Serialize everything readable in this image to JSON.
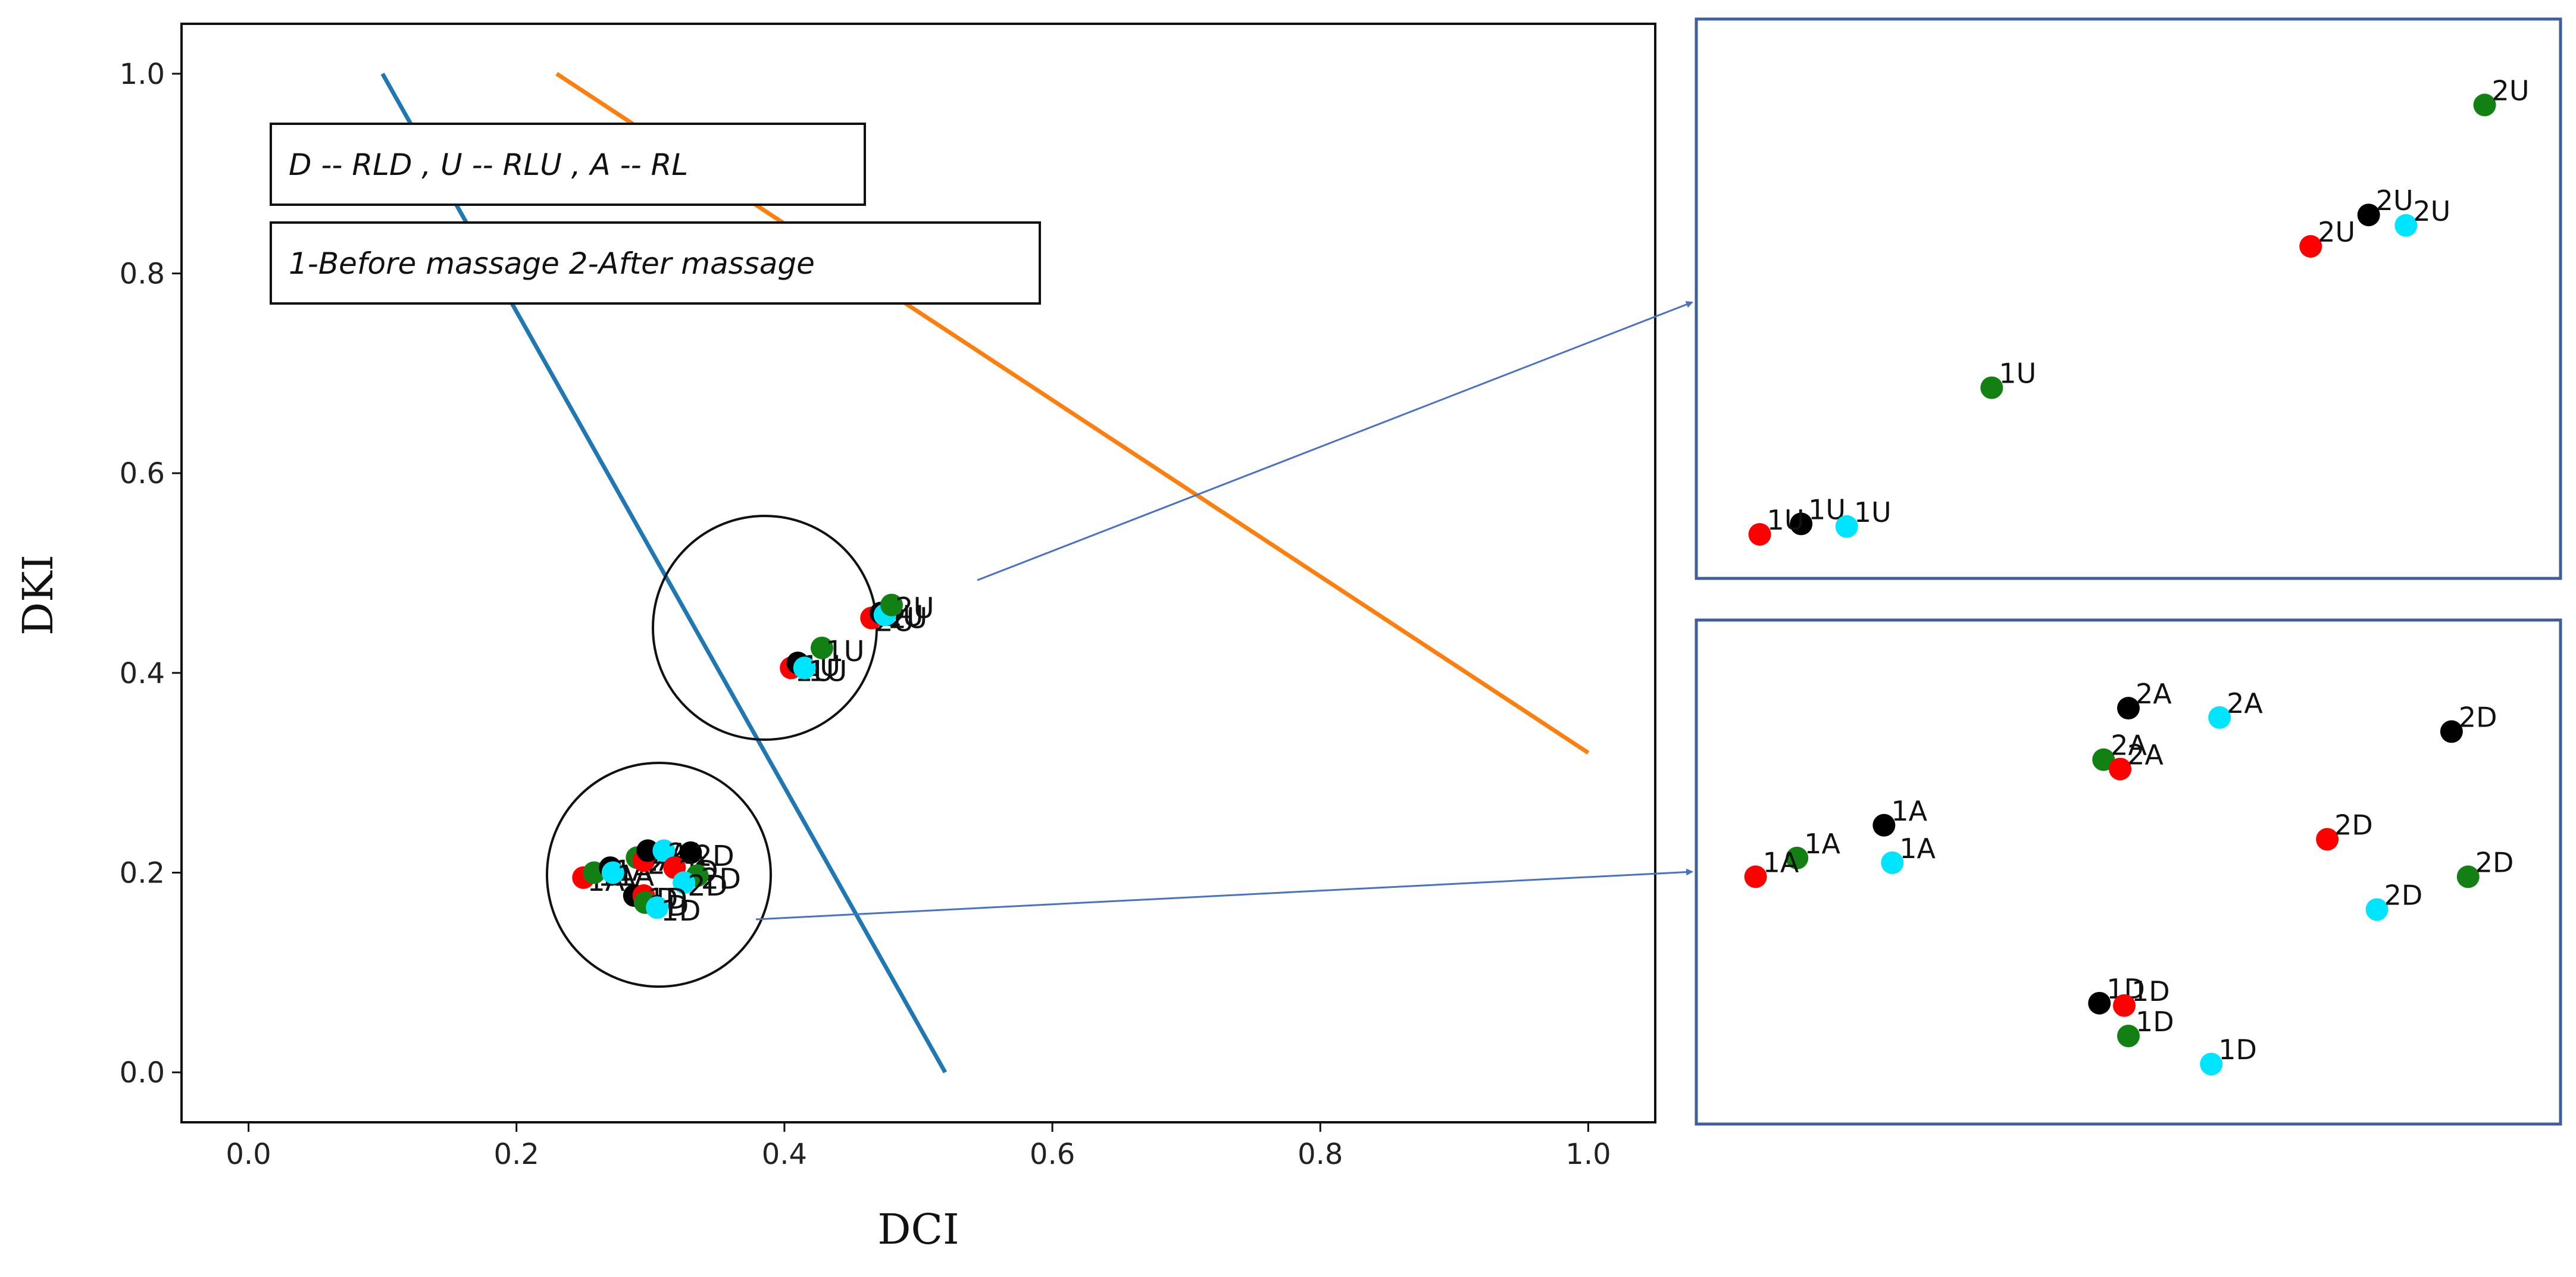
{
  "chart_data": {
    "type": "scatter",
    "xlabel": "DCI",
    "ylabel": "DKI",
    "xlim": [
      -0.05,
      1.05
    ],
    "ylim": [
      -0.05,
      1.05
    ],
    "xticks": [
      "0.0",
      "0.2",
      "0.4",
      "0.6",
      "0.8",
      "1.0"
    ],
    "yticks": [
      "0.0",
      "0.2",
      "0.4",
      "0.6",
      "0.8",
      "1.0"
    ],
    "legend_boxes": [
      "D -- RLD , U -- RLU , A -- RL",
      "1-Before massage 2-After massage"
    ],
    "lines": [
      {
        "name": "blue-line",
        "color": "#1f77b4",
        "x": [
          0.1,
          0.52
        ],
        "y": [
          1.0,
          0.0
        ]
      },
      {
        "name": "orange-line",
        "color": "#ff7f0e",
        "x": [
          0.23,
          1.0
        ],
        "y": [
          1.0,
          0.32
        ]
      }
    ],
    "colors": {
      "red": "#ff0000",
      "green": "#138013",
      "black": "#000000",
      "cyan": "#00e5ff"
    },
    "main_points": [
      {
        "label": "1U",
        "color": "red",
        "x": 0.405,
        "y": 0.405
      },
      {
        "label": "1U",
        "color": "black",
        "x": 0.41,
        "y": 0.41
      },
      {
        "label": "1U",
        "color": "cyan",
        "x": 0.415,
        "y": 0.405
      },
      {
        "label": "1U",
        "color": "green",
        "x": 0.428,
        "y": 0.425
      },
      {
        "label": "2U",
        "color": "red",
        "x": 0.465,
        "y": 0.455
      },
      {
        "label": "2U",
        "color": "black",
        "x": 0.472,
        "y": 0.46
      },
      {
        "label": "2U",
        "color": "cyan",
        "x": 0.475,
        "y": 0.458
      },
      {
        "label": "2U",
        "color": "green",
        "x": 0.48,
        "y": 0.468
      },
      {
        "label": "1A",
        "color": "red",
        "x": 0.25,
        "y": 0.195
      },
      {
        "label": "1A",
        "color": "green",
        "x": 0.258,
        "y": 0.2
      },
      {
        "label": "1A",
        "color": "black",
        "x": 0.27,
        "y": 0.205
      },
      {
        "label": "1A",
        "color": "cyan",
        "x": 0.272,
        "y": 0.2
      },
      {
        "label": "2A",
        "color": "green",
        "x": 0.29,
        "y": 0.215
      },
      {
        "label": "2A",
        "color": "red",
        "x": 0.295,
        "y": 0.212
      },
      {
        "label": "2A",
        "color": "black",
        "x": 0.298,
        "y": 0.222
      },
      {
        "label": "2A",
        "color": "cyan",
        "x": 0.31,
        "y": 0.222
      },
      {
        "label": "2D",
        "color": "black",
        "x": 0.33,
        "y": 0.22
      },
      {
        "label": "2D",
        "color": "red",
        "x": 0.318,
        "y": 0.205
      },
      {
        "label": "2D",
        "color": "green",
        "x": 0.335,
        "y": 0.197
      },
      {
        "label": "2D",
        "color": "cyan",
        "x": 0.325,
        "y": 0.19
      },
      {
        "label": "1D",
        "color": "black",
        "x": 0.288,
        "y": 0.177
      },
      {
        "label": "1D",
        "color": "red",
        "x": 0.295,
        "y": 0.177
      },
      {
        "label": "1D",
        "color": "green",
        "x": 0.296,
        "y": 0.17
      },
      {
        "label": "1D",
        "color": "cyan",
        "x": 0.305,
        "y": 0.165
      }
    ],
    "zoom_upper": [
      {
        "label": "2U",
        "color": "green",
        "u": 0.93,
        "v": 0.87
      },
      {
        "label": "2U",
        "color": "black",
        "u": 0.79,
        "v": 0.66
      },
      {
        "label": "2U",
        "color": "cyan",
        "u": 0.835,
        "v": 0.64
      },
      {
        "label": "2U",
        "color": "red",
        "u": 0.72,
        "v": 0.6
      },
      {
        "label": "1U",
        "color": "green",
        "u": 0.335,
        "v": 0.33
      },
      {
        "label": "1U",
        "color": "black",
        "u": 0.105,
        "v": 0.07
      },
      {
        "label": "1U",
        "color": "cyan",
        "u": 0.16,
        "v": 0.065
      },
      {
        "label": "1U",
        "color": "red",
        "u": 0.055,
        "v": 0.05
      }
    ],
    "zoom_lower": [
      {
        "label": "2A",
        "color": "black",
        "u": 0.5,
        "v": 0.85
      },
      {
        "label": "2A",
        "color": "cyan",
        "u": 0.61,
        "v": 0.83
      },
      {
        "label": "2A",
        "color": "green",
        "u": 0.47,
        "v": 0.74
      },
      {
        "label": "2A",
        "color": "red",
        "u": 0.49,
        "v": 0.72
      },
      {
        "label": "2D",
        "color": "black",
        "u": 0.89,
        "v": 0.8
      },
      {
        "label": "1A",
        "color": "black",
        "u": 0.205,
        "v": 0.6
      },
      {
        "label": "1A",
        "color": "green",
        "u": 0.1,
        "v": 0.53
      },
      {
        "label": "1A",
        "color": "cyan",
        "u": 0.215,
        "v": 0.52
      },
      {
        "label": "1A",
        "color": "red",
        "u": 0.05,
        "v": 0.49
      },
      {
        "label": "2D",
        "color": "red",
        "u": 0.74,
        "v": 0.57
      },
      {
        "label": "2D",
        "color": "green",
        "u": 0.91,
        "v": 0.49
      },
      {
        "label": "2D",
        "color": "cyan",
        "u": 0.8,
        "v": 0.42
      },
      {
        "label": "1D",
        "color": "black",
        "u": 0.465,
        "v": 0.22
      },
      {
        "label": "1D",
        "color": "red",
        "u": 0.495,
        "v": 0.215
      },
      {
        "label": "1D",
        "color": "green",
        "u": 0.5,
        "v": 0.15
      },
      {
        "label": "1D",
        "color": "cyan",
        "u": 0.6,
        "v": 0.09
      }
    ]
  }
}
